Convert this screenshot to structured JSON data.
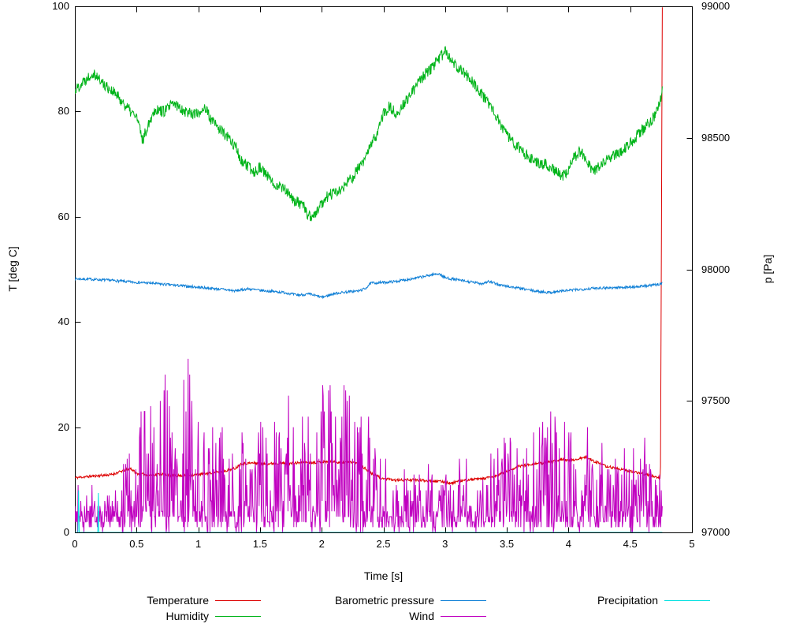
{
  "chart_data": {
    "type": "line",
    "title": "",
    "xlabel": "Time [s]",
    "ylabel_left": "T [deg C]",
    "ylabel_right": "p [Pa]",
    "xlim": [
      0,
      5
    ],
    "ylim_left": [
      0,
      100
    ],
    "ylim_right": [
      97000,
      99000
    ],
    "grid": false,
    "legend_position": "bottom",
    "xticks": [
      "0",
      "0.5",
      "1",
      "1.5",
      "2",
      "2.5",
      "3",
      "3.5",
      "4",
      "4.5",
      "5"
    ],
    "yticks": [
      "0",
      "20",
      "40",
      "60",
      "80",
      "100"
    ],
    "y2ticks": [
      "97000",
      "97500",
      "98000",
      "98500",
      "99000"
    ],
    "series": [
      {
        "name": "Temperature",
        "color": "#dd0000",
        "axis": "left",
        "noise": 0.25,
        "n": 1300,
        "seed": 11,
        "anchors": [
          [
            0,
            10.4
          ],
          [
            0.1,
            10.6
          ],
          [
            0.2,
            10.8
          ],
          [
            0.3,
            11.0
          ],
          [
            0.4,
            11.8
          ],
          [
            0.45,
            12.2
          ],
          [
            0.5,
            11.2
          ],
          [
            0.6,
            10.9
          ],
          [
            0.7,
            11.1
          ],
          [
            0.8,
            10.8
          ],
          [
            0.9,
            10.8
          ],
          [
            1.0,
            11.0
          ],
          [
            1.1,
            11.3
          ],
          [
            1.2,
            11.6
          ],
          [
            1.3,
            12.2
          ],
          [
            1.35,
            13.1
          ],
          [
            1.45,
            13.2
          ],
          [
            1.55,
            13.0
          ],
          [
            1.65,
            13.2
          ],
          [
            1.75,
            13.1
          ],
          [
            1.85,
            13.3
          ],
          [
            1.95,
            13.3
          ],
          [
            2.05,
            13.5
          ],
          [
            2.15,
            13.3
          ],
          [
            2.25,
            13.4
          ],
          [
            2.3,
            13.0
          ],
          [
            2.35,
            12.2
          ],
          [
            2.4,
            11.2
          ],
          [
            2.5,
            10.2
          ],
          [
            2.6,
            9.9
          ],
          [
            2.7,
            10.0
          ],
          [
            2.8,
            9.9
          ],
          [
            2.9,
            9.8
          ],
          [
            3.0,
            9.6
          ],
          [
            3.05,
            9.3
          ],
          [
            3.1,
            9.7
          ],
          [
            3.2,
            10.0
          ],
          [
            3.3,
            10.2
          ],
          [
            3.4,
            10.6
          ],
          [
            3.5,
            11.6
          ],
          [
            3.6,
            12.6
          ],
          [
            3.7,
            13.0
          ],
          [
            3.8,
            13.2
          ],
          [
            3.9,
            13.6
          ],
          [
            3.95,
            14.0
          ],
          [
            4.0,
            13.6
          ],
          [
            4.05,
            13.8
          ],
          [
            4.1,
            14.1
          ],
          [
            4.15,
            14.3
          ],
          [
            4.2,
            13.6
          ],
          [
            4.3,
            12.6
          ],
          [
            4.4,
            12.1
          ],
          [
            4.5,
            11.6
          ],
          [
            4.6,
            11.2
          ],
          [
            4.7,
            10.6
          ],
          [
            4.745,
            10.3
          ],
          [
            4.76,
            100
          ]
        ]
      },
      {
        "name": "Humidity",
        "color": "#00b419",
        "axis": "left",
        "noise": 1.1,
        "n": 1300,
        "seed": 22,
        "anchors": [
          [
            0,
            84
          ],
          [
            0.08,
            86
          ],
          [
            0.15,
            87.5
          ],
          [
            0.22,
            85.5
          ],
          [
            0.3,
            84
          ],
          [
            0.38,
            82
          ],
          [
            0.45,
            80
          ],
          [
            0.5,
            79
          ],
          [
            0.55,
            74.5
          ],
          [
            0.6,
            78
          ],
          [
            0.65,
            80.5
          ],
          [
            0.72,
            80
          ],
          [
            0.8,
            81.5
          ],
          [
            0.9,
            80
          ],
          [
            1.0,
            79.5
          ],
          [
            1.05,
            81
          ],
          [
            1.1,
            78.5
          ],
          [
            1.2,
            76
          ],
          [
            1.3,
            73.5
          ],
          [
            1.35,
            70.5
          ],
          [
            1.45,
            68.5
          ],
          [
            1.5,
            69.5
          ],
          [
            1.6,
            66.5
          ],
          [
            1.7,
            65.5
          ],
          [
            1.75,
            63.5
          ],
          [
            1.85,
            62
          ],
          [
            1.9,
            60
          ],
          [
            1.95,
            60.5
          ],
          [
            2.0,
            62.5
          ],
          [
            2.05,
            64
          ],
          [
            2.15,
            65
          ],
          [
            2.25,
            67.5
          ],
          [
            2.35,
            71
          ],
          [
            2.45,
            76
          ],
          [
            2.5,
            79.5
          ],
          [
            2.55,
            81
          ],
          [
            2.6,
            79.5
          ],
          [
            2.7,
            82.5
          ],
          [
            2.8,
            86
          ],
          [
            2.9,
            88.5
          ],
          [
            3.0,
            91.5
          ],
          [
            3.05,
            89.5
          ],
          [
            3.15,
            87.5
          ],
          [
            3.25,
            85
          ],
          [
            3.35,
            81.5
          ],
          [
            3.45,
            77.5
          ],
          [
            3.55,
            74
          ],
          [
            3.65,
            72
          ],
          [
            3.75,
            70.5
          ],
          [
            3.85,
            69.5
          ],
          [
            3.95,
            67.8
          ],
          [
            4.0,
            69
          ],
          [
            4.05,
            71.5
          ],
          [
            4.1,
            72.5
          ],
          [
            4.2,
            68.5
          ],
          [
            4.3,
            70.5
          ],
          [
            4.4,
            72
          ],
          [
            4.5,
            74
          ],
          [
            4.6,
            76.5
          ],
          [
            4.68,
            78.5
          ],
          [
            4.73,
            81
          ],
          [
            4.76,
            84
          ]
        ]
      },
      {
        "name": "Barometric pressure",
        "color": "#0e7fd6",
        "axis": "right",
        "noise": 5,
        "n": 1300,
        "seed": 7,
        "anchors": [
          [
            0,
            97964
          ],
          [
            0.15,
            97962
          ],
          [
            0.3,
            97958
          ],
          [
            0.45,
            97952
          ],
          [
            0.6,
            97948
          ],
          [
            0.75,
            97942
          ],
          [
            0.9,
            97936
          ],
          [
            1.0,
            97932
          ],
          [
            1.1,
            97928
          ],
          [
            1.2,
            97924
          ],
          [
            1.3,
            97918
          ],
          [
            1.4,
            97926
          ],
          [
            1.5,
            97920
          ],
          [
            1.6,
            97916
          ],
          [
            1.7,
            97912
          ],
          [
            1.8,
            97902
          ],
          [
            1.9,
            97906
          ],
          [
            2.0,
            97894
          ],
          [
            2.05,
            97900
          ],
          [
            2.1,
            97908
          ],
          [
            2.2,
            97914
          ],
          [
            2.3,
            97918
          ],
          [
            2.35,
            97926
          ],
          [
            2.4,
            97948
          ],
          [
            2.5,
            97950
          ],
          [
            2.6,
            97954
          ],
          [
            2.7,
            97962
          ],
          [
            2.8,
            97970
          ],
          [
            2.9,
            97980
          ],
          [
            2.95,
            97984
          ],
          [
            3.0,
            97968
          ],
          [
            3.1,
            97960
          ],
          [
            3.2,
            97952
          ],
          [
            3.3,
            97946
          ],
          [
            3.35,
            97954
          ],
          [
            3.45,
            97940
          ],
          [
            3.55,
            97932
          ],
          [
            3.65,
            97924
          ],
          [
            3.75,
            97916
          ],
          [
            3.85,
            97912
          ],
          [
            3.95,
            97918
          ],
          [
            4.05,
            97922
          ],
          [
            4.15,
            97926
          ],
          [
            4.25,
            97930
          ],
          [
            4.35,
            97930
          ],
          [
            4.45,
            97932
          ],
          [
            4.55,
            97934
          ],
          [
            4.65,
            97938
          ],
          [
            4.72,
            97942
          ],
          [
            4.76,
            97948
          ]
        ]
      },
      {
        "name": "Wind",
        "color": "#c000c0",
        "axis": "left",
        "n": 1100,
        "seed": 44,
        "envelope": [
          [
            0,
            7
          ],
          [
            0.2,
            6
          ],
          [
            0.35,
            8
          ],
          [
            0.45,
            16
          ],
          [
            0.55,
            26
          ],
          [
            0.65,
            20
          ],
          [
            0.75,
            31
          ],
          [
            0.85,
            24
          ],
          [
            0.9,
            34
          ],
          [
            1.0,
            24
          ],
          [
            1.1,
            19
          ],
          [
            1.2,
            21
          ],
          [
            1.3,
            17
          ],
          [
            1.4,
            19
          ],
          [
            1.5,
            21
          ],
          [
            1.6,
            23
          ],
          [
            1.7,
            26
          ],
          [
            1.8,
            23
          ],
          [
            1.9,
            19
          ],
          [
            2.0,
            31
          ],
          [
            2.1,
            26
          ],
          [
            2.2,
            29
          ],
          [
            2.3,
            19
          ],
          [
            2.35,
            28
          ],
          [
            2.45,
            14
          ],
          [
            2.55,
            11
          ],
          [
            2.65,
            9
          ],
          [
            2.75,
            11
          ],
          [
            2.85,
            12
          ],
          [
            2.95,
            10
          ],
          [
            3.05,
            11
          ],
          [
            3.15,
            12
          ],
          [
            3.25,
            9
          ],
          [
            3.35,
            13
          ],
          [
            3.45,
            25
          ],
          [
            3.55,
            17
          ],
          [
            3.65,
            15
          ],
          [
            3.75,
            19
          ],
          [
            3.85,
            23
          ],
          [
            3.95,
            21
          ],
          [
            4.05,
            17
          ],
          [
            4.15,
            19
          ],
          [
            4.25,
            15
          ],
          [
            4.35,
            13
          ],
          [
            4.45,
            17
          ],
          [
            4.55,
            15
          ],
          [
            4.65,
            19
          ],
          [
            4.76,
            11
          ]
        ]
      },
      {
        "name": "Precipitation",
        "color": "#00e0e0",
        "axis": "left",
        "points": [
          [
            0,
            0
          ],
          [
            0.025,
            0
          ],
          [
            0.03,
            8
          ],
          [
            0.035,
            0
          ],
          [
            0.185,
            0
          ],
          [
            0.19,
            7.5
          ],
          [
            0.195,
            0
          ],
          [
            4.76,
            0
          ]
        ]
      }
    ]
  }
}
